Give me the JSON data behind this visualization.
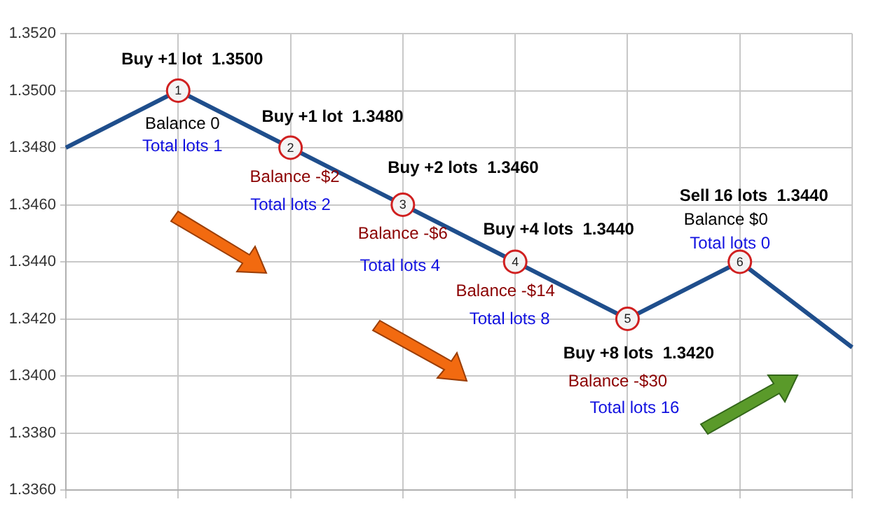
{
  "chart_data": {
    "type": "line",
    "categories": [
      null,
      null,
      null,
      null,
      null,
      null,
      null,
      null
    ],
    "series": [
      {
        "color": "#1f4e8c",
        "values": [
          1.348,
          1.35,
          1.348,
          1.346,
          1.344,
          1.342,
          1.344,
          1.341
        ]
      }
    ],
    "ylim": [
      1.336,
      1.352
    ],
    "yticks": [
      {
        "value": 1.336,
        "label": "1.3360"
      },
      {
        "value": 1.338,
        "label": "1.3380"
      },
      {
        "value": 1.34,
        "label": "1.3400"
      },
      {
        "value": 1.342,
        "label": "1.3420"
      },
      {
        "value": 1.344,
        "label": "1.3440"
      },
      {
        "value": 1.346,
        "label": "1.3460"
      },
      {
        "value": 1.348,
        "label": "1.3480"
      },
      {
        "value": 1.35,
        "label": "1.3500"
      },
      {
        "value": 1.352,
        "label": "1.3520"
      }
    ],
    "tick_labels": "y",
    "grid": true,
    "legend": false,
    "line_style": "solid",
    "annotations": [
      "1",
      "Buy +1 lot  1.3500",
      "Balance 0",
      "Total lots 1",
      "2",
      "Buy +1 lot  1.3480",
      "Balance -$2",
      "Total lots 2",
      "3",
      "Buy +2 lots  1.3460",
      "Balance -$6",
      "Total lots 4",
      "4",
      "Buy +4 lots  1.3440",
      "Balance -$14",
      "Total lots 8",
      "5",
      "Buy +8 lots  1.3420",
      "Balance -$30",
      "Total lots 16",
      "6",
      "Sell 16 lots  1.3440",
      "Balance $0",
      "Total lots 0"
    ]
  }
}
